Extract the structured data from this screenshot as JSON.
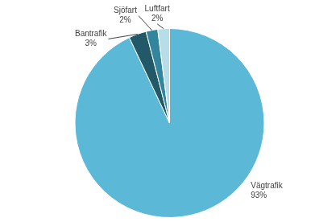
{
  "chart_data": {
    "type": "pie",
    "categories": [
      "Vägtrafik",
      "Bantrafik",
      "Sjöfart",
      "Luftfart"
    ],
    "values": [
      93,
      3,
      2,
      2
    ],
    "value_labels": [
      "93%",
      "3%",
      "2%",
      "2%"
    ],
    "colors": [
      "#5cb8d7",
      "#215968",
      "#31859c",
      "#b7dee8"
    ],
    "data_labels": true
  }
}
